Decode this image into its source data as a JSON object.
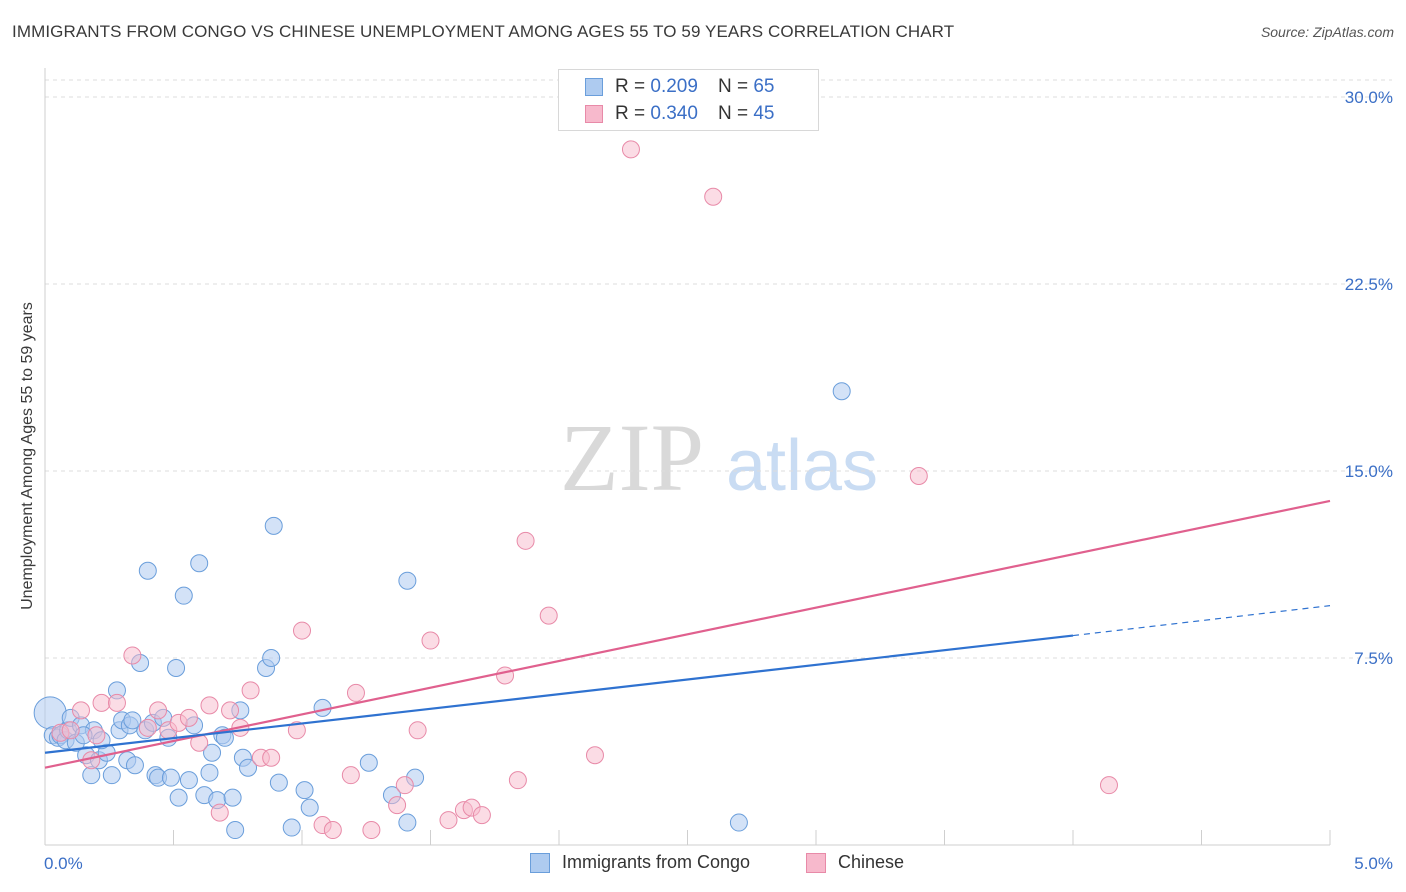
{
  "title": "IMMIGRANTS FROM CONGO VS CHINESE UNEMPLOYMENT AMONG AGES 55 TO 59 YEARS CORRELATION CHART",
  "source": "Source: ZipAtlas.com",
  "watermark": {
    "zip": "ZIP",
    "atlas": "atlas"
  },
  "colors": {
    "blue_fill": "#aecbf0",
    "blue_stroke": "#6a9edb",
    "blue_line": "#2f72d0",
    "pink_fill": "#f7b9cc",
    "pink_stroke": "#e88aa8",
    "pink_line": "#e0608e",
    "grid": "#dddddd",
    "tick_label": "#3b6fc6"
  },
  "legend": {
    "rows": [
      {
        "r_label": "R =",
        "r_value": "0.209",
        "n_label": "N =",
        "n_value": "65"
      },
      {
        "r_label": "R =",
        "r_value": "0.340",
        "n_label": "N =",
        "n_value": "45"
      }
    ]
  },
  "bottom_legend": {
    "blue": "Immigrants from Congo",
    "pink": "Chinese"
  },
  "chart_data": {
    "type": "scatter",
    "xlabel": "",
    "ylabel": "Unemployment Among Ages 55 to 59 years",
    "xlim": [
      0,
      5
    ],
    "ylim": [
      0,
      30
    ],
    "x_tick_labels": [
      "0.0%",
      "5.0%"
    ],
    "y_ticks": [
      7.5,
      15.0,
      22.5,
      30.0
    ],
    "y_tick_labels": [
      "7.5%",
      "15.0%",
      "22.5%",
      "30.0%"
    ],
    "series": [
      {
        "name": "Immigrants from Congo",
        "color": "blue",
        "points": [
          [
            0.02,
            5.3
          ],
          [
            0.03,
            4.4
          ],
          [
            0.05,
            4.3
          ],
          [
            0.06,
            4.4
          ],
          [
            0.08,
            4.2
          ],
          [
            0.09,
            4.6
          ],
          [
            0.1,
            5.1
          ],
          [
            0.12,
            4.1
          ],
          [
            0.14,
            4.8
          ],
          [
            0.16,
            3.6
          ],
          [
            0.18,
            2.8
          ],
          [
            0.19,
            4.6
          ],
          [
            0.21,
            3.4
          ],
          [
            0.24,
            3.7
          ],
          [
            0.26,
            2.8
          ],
          [
            0.28,
            6.2
          ],
          [
            0.29,
            4.6
          ],
          [
            0.3,
            5.0
          ],
          [
            0.32,
            3.4
          ],
          [
            0.33,
            4.8
          ],
          [
            0.35,
            3.2
          ],
          [
            0.37,
            7.3
          ],
          [
            0.39,
            4.6
          ],
          [
            0.4,
            11.0
          ],
          [
            0.42,
            4.9
          ],
          [
            0.43,
            2.8
          ],
          [
            0.44,
            2.7
          ],
          [
            0.46,
            5.1
          ],
          [
            0.48,
            4.3
          ],
          [
            0.49,
            2.7
          ],
          [
            0.51,
            7.1
          ],
          [
            0.52,
            1.9
          ],
          [
            0.54,
            10.0
          ],
          [
            0.56,
            2.6
          ],
          [
            0.58,
            4.8
          ],
          [
            0.6,
            11.3
          ],
          [
            0.62,
            2.0
          ],
          [
            0.64,
            2.9
          ],
          [
            0.65,
            3.7
          ],
          [
            0.67,
            1.8
          ],
          [
            0.69,
            4.4
          ],
          [
            0.7,
            4.3
          ],
          [
            0.73,
            1.9
          ],
          [
            0.74,
            0.6
          ],
          [
            0.76,
            5.4
          ],
          [
            0.77,
            3.5
          ],
          [
            0.79,
            3.1
          ],
          [
            0.86,
            7.1
          ],
          [
            0.88,
            7.5
          ],
          [
            0.89,
            12.8
          ],
          [
            0.91,
            2.5
          ],
          [
            0.96,
            0.7
          ],
          [
            1.01,
            2.2
          ],
          [
            1.03,
            1.5
          ],
          [
            1.08,
            5.5
          ],
          [
            1.26,
            3.3
          ],
          [
            1.35,
            2.0
          ],
          [
            1.41,
            10.6
          ],
          [
            1.41,
            0.9
          ],
          [
            1.44,
            2.7
          ],
          [
            2.7,
            0.9
          ],
          [
            3.1,
            18.2
          ],
          [
            0.34,
            5.0
          ],
          [
            0.22,
            4.2
          ],
          [
            0.15,
            4.4
          ]
        ],
        "trend": {
          "x0": 0,
          "y0": 3.7,
          "x1": 4.0,
          "y1": 8.4,
          "dash_x1": 5.0,
          "dash_y1": 9.6
        }
      },
      {
        "name": "Chinese",
        "color": "pink",
        "points": [
          [
            0.06,
            4.5
          ],
          [
            0.1,
            4.6
          ],
          [
            0.14,
            5.4
          ],
          [
            0.18,
            3.4
          ],
          [
            0.22,
            5.7
          ],
          [
            0.28,
            5.7
          ],
          [
            0.34,
            7.6
          ],
          [
            0.4,
            4.7
          ],
          [
            0.44,
            5.4
          ],
          [
            0.48,
            4.6
          ],
          [
            0.52,
            4.9
          ],
          [
            0.56,
            5.1
          ],
          [
            0.6,
            4.1
          ],
          [
            0.64,
            5.6
          ],
          [
            0.68,
            1.3
          ],
          [
            0.72,
            5.4
          ],
          [
            0.76,
            4.7
          ],
          [
            0.8,
            6.2
          ],
          [
            0.84,
            3.5
          ],
          [
            0.88,
            3.5
          ],
          [
            0.98,
            4.6
          ],
          [
            1.0,
            8.6
          ],
          [
            1.08,
            0.8
          ],
          [
            1.12,
            0.6
          ],
          [
            1.19,
            2.8
          ],
          [
            1.21,
            6.1
          ],
          [
            1.27,
            0.6
          ],
          [
            1.37,
            1.6
          ],
          [
            1.4,
            2.4
          ],
          [
            1.45,
            4.6
          ],
          [
            1.5,
            8.2
          ],
          [
            1.57,
            1.0
          ],
          [
            1.63,
            1.4
          ],
          [
            1.66,
            1.5
          ],
          [
            1.7,
            1.2
          ],
          [
            1.79,
            6.8
          ],
          [
            1.84,
            2.6
          ],
          [
            1.87,
            12.2
          ],
          [
            1.96,
            9.2
          ],
          [
            2.14,
            3.6
          ],
          [
            2.28,
            27.9
          ],
          [
            2.6,
            26.0
          ],
          [
            3.4,
            14.8
          ],
          [
            4.14,
            2.4
          ],
          [
            0.2,
            4.4
          ]
        ],
        "trend": {
          "x0": 0,
          "y0": 3.1,
          "x1": 5.0,
          "y1": 13.8
        }
      }
    ]
  }
}
